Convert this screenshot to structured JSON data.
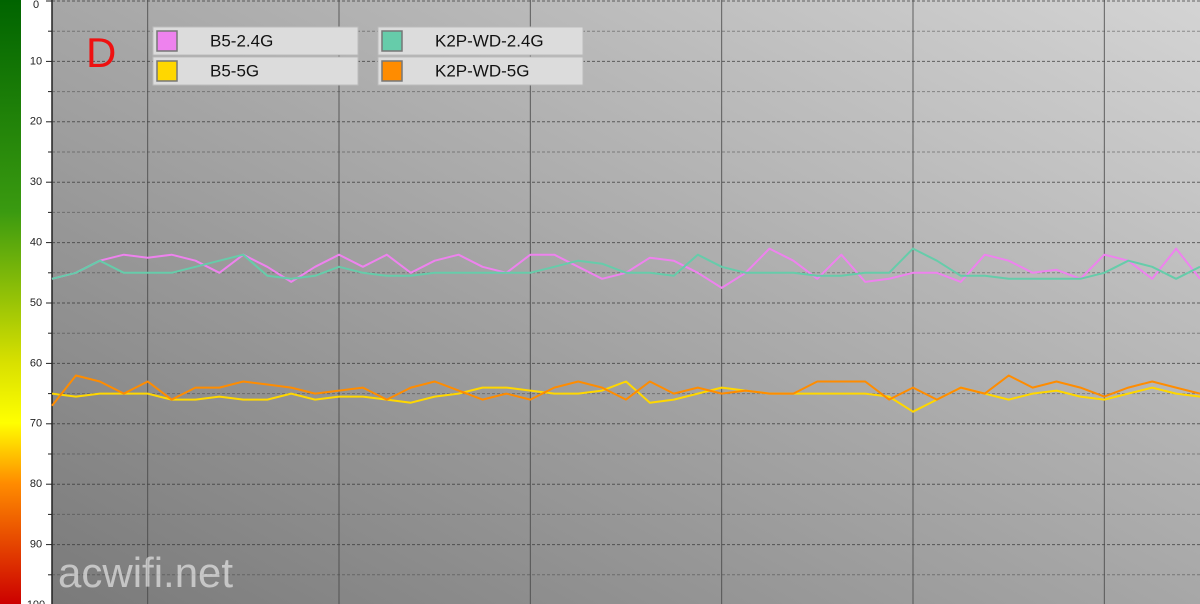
{
  "chart_data": {
    "type": "line",
    "annotations": [
      "D",
      "acwifi.net"
    ],
    "x": [
      0,
      1,
      2,
      3,
      4,
      5,
      6,
      7,
      8,
      9,
      10,
      11,
      12,
      13,
      14,
      15,
      16,
      17,
      18,
      19,
      20,
      21,
      22,
      23,
      24,
      25,
      26,
      27,
      28,
      29,
      30,
      31,
      32,
      33,
      34,
      35,
      36,
      37,
      38,
      39,
      40,
      41,
      42,
      43,
      44,
      45,
      46,
      47,
      48
    ],
    "xlim": [
      0,
      48
    ],
    "xticks": [
      4,
      12,
      20,
      28,
      36,
      44
    ],
    "ylim": [
      100,
      0
    ],
    "yticks": [
      0,
      10,
      20,
      30,
      40,
      50,
      60,
      70,
      80,
      90,
      100
    ],
    "grid": true,
    "series": [
      {
        "name": "B5-2.4G",
        "color": "#ee82ee",
        "values": [
          46,
          45,
          43,
          42,
          42.5,
          42,
          43,
          45,
          42,
          44,
          46.5,
          44,
          42,
          44,
          42,
          45,
          43,
          42,
          44,
          45,
          42,
          42,
          44,
          46,
          45,
          42.5,
          43,
          45,
          47.5,
          45,
          41,
          43,
          46,
          42,
          46.5,
          46,
          45,
          45,
          46.5,
          42,
          43,
          45,
          44.5,
          46,
          42,
          43,
          46,
          41,
          46
        ]
      },
      {
        "name": "B5-5G",
        "color": "#ffd700",
        "values": [
          65,
          65.5,
          65,
          65,
          65,
          66,
          66,
          65.5,
          66,
          66,
          65,
          66,
          65.5,
          65.5,
          66,
          66.5,
          65.5,
          65,
          64,
          64,
          64.5,
          65,
          65,
          64.5,
          63,
          66.5,
          66,
          65,
          64,
          64.5,
          65,
          65,
          65,
          65,
          65,
          65.5,
          68,
          66,
          64,
          65,
          66,
          65,
          64.5,
          65.5,
          66,
          65,
          64,
          65,
          65.5
        ]
      },
      {
        "name": "K2P-WD-2.4G",
        "color": "#66ccaa",
        "values": [
          46,
          45,
          43,
          45,
          45,
          45,
          44,
          43,
          42,
          45.5,
          46,
          45.5,
          44,
          45,
          45.5,
          45.5,
          45,
          45,
          45,
          45,
          45,
          44,
          43,
          43.5,
          45,
          45,
          45.5,
          42,
          44,
          45,
          45,
          45,
          45.5,
          45.5,
          45,
          45,
          41,
          43,
          45.5,
          45.5,
          46,
          46,
          46,
          46,
          45,
          43,
          44,
          46,
          44
        ]
      },
      {
        "name": "K2P-WD-5G",
        "color": "#ff8c00",
        "values": [
          67,
          62,
          63,
          65,
          63,
          66,
          64,
          64,
          63,
          63.5,
          64,
          65,
          64.5,
          64,
          66,
          64,
          63,
          64.5,
          66,
          65,
          66,
          64,
          63,
          64,
          66,
          63,
          65,
          64,
          65,
          64.5,
          65,
          65,
          63,
          63,
          63,
          66,
          64,
          66,
          64,
          65,
          62,
          64,
          63,
          64,
          65.5,
          64,
          63,
          64,
          65
        ]
      }
    ]
  }
}
